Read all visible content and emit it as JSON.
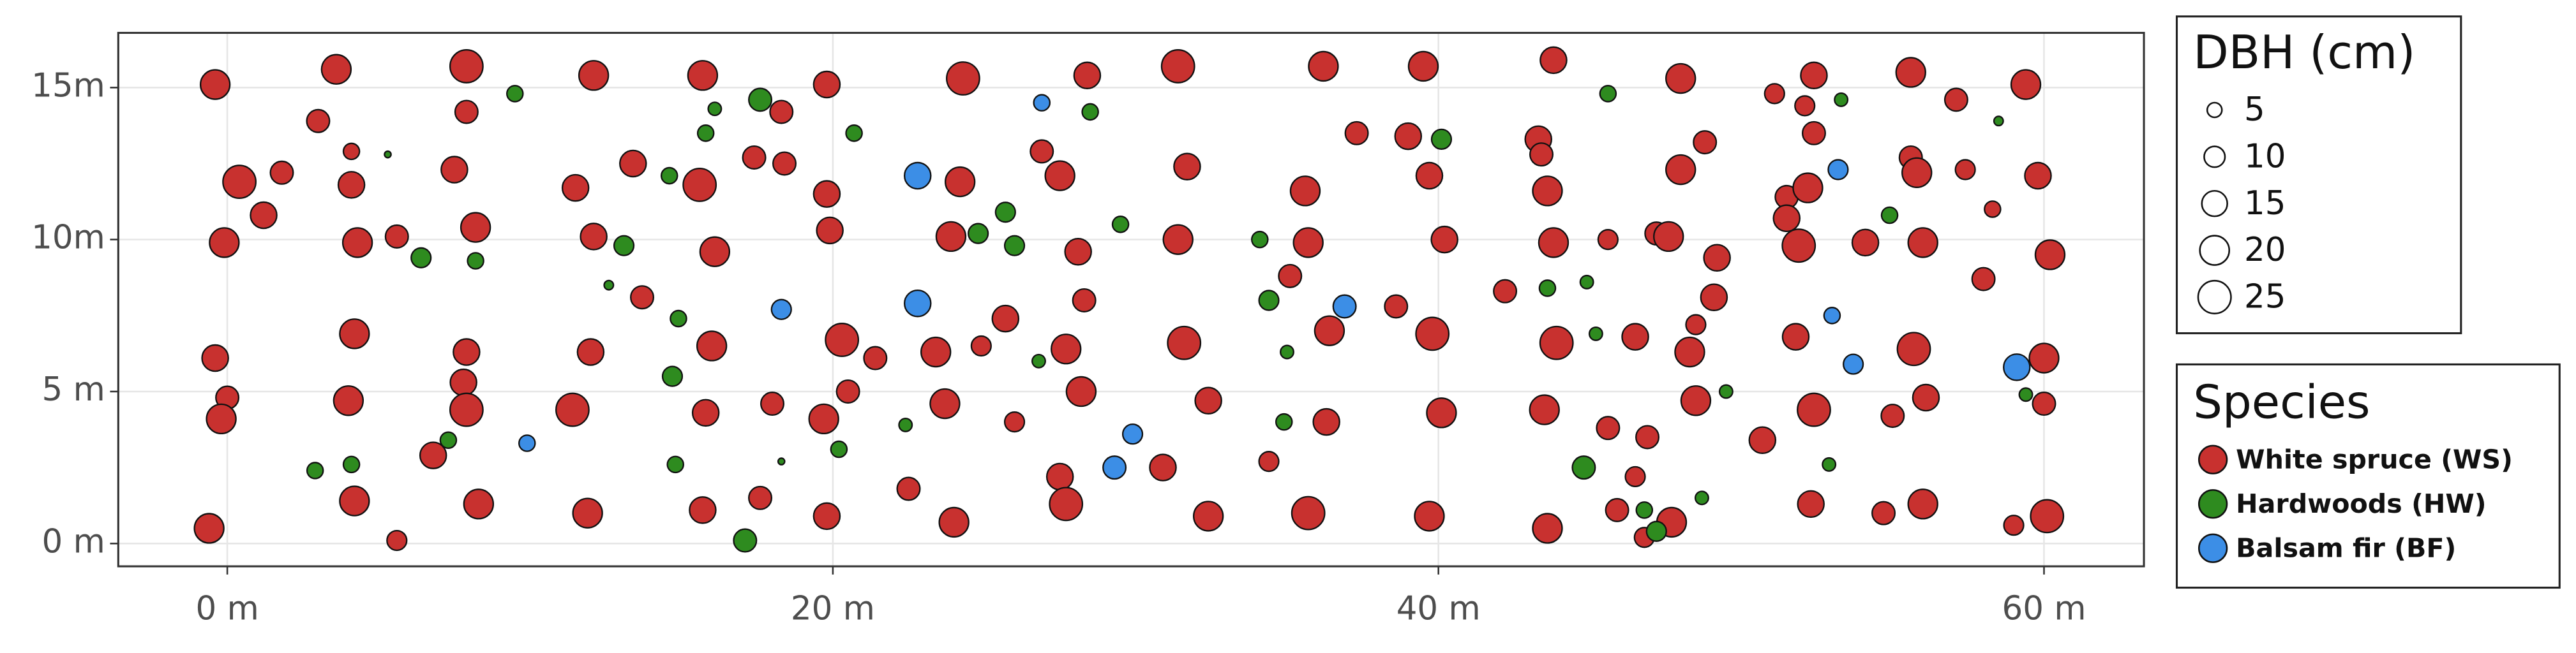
{
  "chart_data": {
    "type": "scatter",
    "xlim": [
      -3.6,
      63.3
    ],
    "ylim": [
      -0.75,
      16.8
    ],
    "xticks": [
      {
        "value": 0,
        "label": "0 m"
      },
      {
        "value": 20,
        "label": "20 m"
      },
      {
        "value": 40,
        "label": "40 m"
      },
      {
        "value": 60,
        "label": "60 m"
      }
    ],
    "yticks": [
      {
        "value": 0,
        "label": "0 m"
      },
      {
        "value": 5,
        "label": "5 m"
      },
      {
        "value": 10,
        "label": "10m"
      },
      {
        "value": 15,
        "label": "15m"
      }
    ],
    "grid": true,
    "size_legend": {
      "title": "DBH (cm)",
      "values": [
        5,
        10,
        15,
        20,
        25
      ]
    },
    "legend_title": "Species",
    "series": [
      {
        "name": "White spruce (WS)",
        "color": "#c8312f",
        "x": [
          -0.4,
          0.4,
          -0.1,
          -0.4,
          0,
          -0.2,
          -0.6,
          1.8,
          1.2,
          3.0,
          3.6,
          4.1,
          4.1,
          4.3,
          4.2,
          4.0,
          4.2,
          5.6,
          5.6,
          7.9,
          7.9,
          7.5,
          8.2,
          7.9,
          7.8,
          7.9,
          6.8,
          8.3,
          12.1,
          11.5,
          12.1,
          12.0,
          11.4,
          11.9,
          13.4,
          13.7,
          15.7,
          15.6,
          16.1,
          16.0,
          15.8,
          15.7,
          18.3,
          17.4,
          18.4,
          19.8,
          19.9,
          18.0,
          17.6,
          19.8,
          20.3,
          20.5,
          19.7,
          19.8,
          21.4,
          22.5,
          24.3,
          24.2,
          23.9,
          23.4,
          23.7,
          24.0,
          24.9,
          26.0,
          25.7,
          26.9,
          28.4,
          27.5,
          28.1,
          28.3,
          27.7,
          28.2,
          27.5,
          27.7,
          30.9,
          31.4,
          31.7,
          31.4,
          31.6,
          32.4,
          32.4,
          36.2,
          35.6,
          35.7,
          35.1,
          36.4,
          36.3,
          35.7,
          34.4,
          37.3,
          38.6,
          39.0,
          39.5,
          39.7,
          40.2,
          39.8,
          40.1,
          39.7,
          42.2,
          43.3,
          43.4,
          43.6,
          43.8,
          43.9,
          43.5,
          43.6,
          43.8,
          45.6,
          45.6,
          46.5,
          46.5,
          45.9,
          46.8,
          46.9,
          47.2,
          47.6,
          48.0,
          48.0,
          48.8,
          49.2,
          49.1,
          48.5,
          48.3,
          48.5,
          47.7,
          50.7,
          51.1,
          51.5,
          51.5,
          51.9,
          51.8,
          52.4,
          52.1,
          52.4,
          52.2,
          52.4,
          52.3,
          54.1,
          54.7,
          55.0,
          55.6,
          55.6,
          55.8,
          56.0,
          55.7,
          56.1,
          56.0,
          57.1,
          57.4,
          58.3,
          58.0,
          59.4,
          59.8,
          60.2,
          60.0,
          60.0,
          60.1,
          59.0
        ],
        "y": [
          15.1,
          11.9,
          9.9,
          6.1,
          4.8,
          4.1,
          0.5,
          12.2,
          10.8,
          13.9,
          15.6,
          12.9,
          11.8,
          9.9,
          6.9,
          4.7,
          1.4,
          10.1,
          0.1,
          15.7,
          14.2,
          12.3,
          10.4,
          6.3,
          5.3,
          4.4,
          2.9,
          1.3,
          15.4,
          11.7,
          10.1,
          6.3,
          4.4,
          1.0,
          12.5,
          8.1,
          15.4,
          11.8,
          9.6,
          6.5,
          4.3,
          1.1,
          14.2,
          12.7,
          12.5,
          11.5,
          10.3,
          4.6,
          1.5,
          15.1,
          6.7,
          5.0,
          4.1,
          0.9,
          6.1,
          1.8,
          15.3,
          11.9,
          10.1,
          6.3,
          4.6,
          0.7,
          6.5,
          4.0,
          7.4,
          12.9,
          15.4,
          12.1,
          9.6,
          8.0,
          6.4,
          5.0,
          2.2,
          1.3,
          2.5,
          15.7,
          12.4,
          10.0,
          6.6,
          4.7,
          0.9,
          15.7,
          11.6,
          9.9,
          8.8,
          7.0,
          4.0,
          1.0,
          2.7,
          13.5,
          7.8,
          13.4,
          15.7,
          12.1,
          10.0,
          6.9,
          4.3,
          0.9,
          8.3,
          13.3,
          12.8,
          11.6,
          9.9,
          6.6,
          4.4,
          0.5,
          15.9,
          3.8,
          10.0,
          6.8,
          2.2,
          1.1,
          0.2,
          3.5,
          10.2,
          10.1,
          15.3,
          12.3,
          13.2,
          9.4,
          8.1,
          7.2,
          6.3,
          4.7,
          0.7,
          3.4,
          14.8,
          11.4,
          10.7,
          9.8,
          6.8,
          15.4,
          14.4,
          13.5,
          11.7,
          4.4,
          1.3,
          9.9,
          1.0,
          4.2,
          15.5,
          12.7,
          12.2,
          9.9,
          6.4,
          4.8,
          1.3,
          14.6,
          12.3,
          11.0,
          8.7,
          15.1,
          12.1,
          9.5,
          6.1,
          4.6,
          0.9,
          0.6
        ],
        "sizes": [
          20,
          25,
          20,
          16,
          12,
          20,
          20,
          12,
          16,
          12,
          20,
          6,
          16,
          20,
          20,
          20,
          20,
          12,
          9,
          25,
          12,
          16,
          20,
          16,
          16,
          25,
          16,
          20,
          20,
          16,
          16,
          16,
          25,
          20,
          16,
          12,
          20,
          25,
          20,
          20,
          16,
          16,
          12,
          12,
          12,
          16,
          16,
          12,
          12,
          16,
          25,
          12,
          20,
          16,
          12,
          12,
          25,
          20,
          20,
          20,
          20,
          20,
          9,
          9,
          16,
          12,
          16,
          20,
          16,
          12,
          20,
          20,
          16,
          25,
          16,
          25,
          16,
          20,
          25,
          16,
          20,
          20,
          20,
          20,
          12,
          20,
          16,
          25,
          9,
          12,
          12,
          16,
          20,
          16,
          16,
          25,
          20,
          20,
          12,
          16,
          12,
          20,
          20,
          25,
          20,
          20,
          16,
          12,
          9,
          16,
          9,
          12,
          9,
          12,
          12,
          20,
          20,
          20,
          12,
          16,
          16,
          9,
          20,
          20,
          20,
          16,
          9,
          12,
          16,
          25,
          16,
          16,
          9,
          12,
          20,
          25,
          16,
          16,
          12,
          12,
          20,
          12,
          20,
          20,
          25,
          16,
          20,
          12,
          9,
          6,
          12,
          20,
          16,
          20,
          20,
          12,
          25,
          9
        ]
      },
      {
        "name": "Hardwoods (HW)",
        "color": "#2e8b1f",
        "x": [
          9.5,
          6.4,
          8.2,
          7.3,
          2.9,
          4.1,
          5.3,
          17.6,
          15.8,
          16.1,
          14.6,
          13.1,
          12.6,
          14.9,
          14.7,
          14.8,
          17.1,
          18.3,
          20.2,
          20.7,
          22.4,
          24.8,
          25.7,
          26.0,
          26.8,
          28.5,
          29.5,
          34.1,
          34.4,
          35.0,
          34.9,
          40.1,
          43.6,
          44.9,
          45.6,
          45.2,
          44.8,
          46.8,
          47.2,
          48.7,
          49.5,
          52.9,
          53.3,
          54.9,
          58.5,
          59.4
        ],
        "y": [
          14.8,
          9.4,
          9.3,
          3.4,
          2.4,
          2.6,
          12.8,
          14.6,
          13.5,
          14.3,
          12.1,
          9.8,
          8.5,
          7.4,
          5.5,
          2.6,
          0.1,
          2.7,
          3.1,
          13.5,
          3.9,
          10.2,
          10.9,
          9.8,
          6.0,
          14.2,
          10.5,
          10.0,
          8.0,
          6.3,
          4.0,
          13.3,
          8.4,
          8.6,
          14.8,
          6.9,
          2.5,
          1.1,
          0.4,
          1.5,
          5.0,
          2.6,
          14.6,
          10.8,
          13.9,
          4.9
        ],
        "sizes": [
          6,
          9,
          6,
          6,
          6,
          6,
          1,
          12,
          6,
          4,
          6,
          9,
          2,
          6,
          9,
          6,
          12,
          1,
          6,
          6,
          4,
          9,
          9,
          9,
          4,
          6,
          6,
          6,
          9,
          4,
          6,
          9,
          6,
          4,
          6,
          4,
          12,
          6,
          9,
          4,
          4,
          4,
          4,
          6,
          2,
          4
        ]
      },
      {
        "name": "Balsam fir (BF)",
        "color": "#3c8ee6",
        "x": [
          9.9,
          18.3,
          22.8,
          22.8,
          26.9,
          29.9,
          29.3,
          36.9,
          53.2,
          53.0,
          53.7,
          59.1
        ],
        "y": [
          3.3,
          7.7,
          12.1,
          7.9,
          14.5,
          3.6,
          2.5,
          7.8,
          12.3,
          7.5,
          5.9,
          5.8
        ],
        "sizes": [
          6,
          9,
          16,
          16,
          6,
          9,
          12,
          12,
          9,
          6,
          9,
          16
        ]
      }
    ]
  }
}
